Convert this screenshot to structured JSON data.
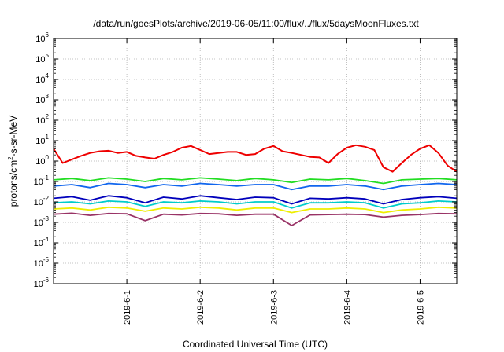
{
  "chart_data": {
    "type": "line",
    "title": "/data/run/goesPlots/archive/2019-06-05/11:00/flux/../flux/5daysMoonFluxes.txt",
    "xlabel": "Coordinated Universal Time (UTC)",
    "ylabel": {
      "base": "protons/cm",
      "sup": "2",
      "rest": "-s-sr-MeV"
    },
    "scale": {
      "y": "log"
    },
    "ylim": [
      1e-06,
      1000000.0
    ],
    "y_ticks": [
      {
        "value": 1e-06,
        "base": "10",
        "exp": "-6"
      },
      {
        "value": 1e-05,
        "base": "10",
        "exp": "-5"
      },
      {
        "value": 0.0001,
        "base": "10",
        "exp": "-4"
      },
      {
        "value": 0.001,
        "base": "10",
        "exp": "-3"
      },
      {
        "value": 0.01,
        "base": "10",
        "exp": "-2"
      },
      {
        "value": 0.1,
        "base": "10",
        "exp": "-1"
      },
      {
        "value": 1,
        "base": "10",
        "exp": "0"
      },
      {
        "value": 10,
        "base": "10",
        "exp": "1"
      },
      {
        "value": 100,
        "base": "10",
        "exp": "2"
      },
      {
        "value": 1000,
        "base": "10",
        "exp": "3"
      },
      {
        "value": 10000,
        "base": "10",
        "exp": "4"
      },
      {
        "value": 100000,
        "base": "10",
        "exp": "5"
      },
      {
        "value": 1000000,
        "base": "10",
        "exp": "6"
      }
    ],
    "xlim": [
      "2019-05-31 00:00",
      "2019-06-05 12:00"
    ],
    "x_ticks": [
      {
        "value": "2019-06-01 00:00",
        "label": "2019-6-1"
      },
      {
        "value": "2019-06-02 00:00",
        "label": "2019-6-2"
      },
      {
        "value": "2019-06-03 00:00",
        "label": "2019-6-3"
      },
      {
        "value": "2019-06-04 00:00",
        "label": "2019-6-4"
      },
      {
        "value": "2019-06-05 00:00",
        "label": "2019-6-5"
      }
    ],
    "grid": true,
    "legend": "none",
    "series": [
      {
        "color": "#ee0000",
        "x": [
          "2019-05-31 00:00",
          "2019-05-31 03:00",
          "2019-05-31 06:00",
          "2019-05-31 09:00",
          "2019-05-31 12:00",
          "2019-05-31 15:00",
          "2019-05-31 18:00",
          "2019-05-31 21:00",
          "2019-06-01 00:00",
          "2019-06-01 03:00",
          "2019-06-01 06:00",
          "2019-06-01 09:00",
          "2019-06-01 12:00",
          "2019-06-01 15:00",
          "2019-06-01 18:00",
          "2019-06-01 21:00",
          "2019-06-02 00:00",
          "2019-06-02 03:00",
          "2019-06-02 06:00",
          "2019-06-02 09:00",
          "2019-06-02 12:00",
          "2019-06-02 15:00",
          "2019-06-02 18:00",
          "2019-06-02 21:00",
          "2019-06-03 00:00",
          "2019-06-03 03:00",
          "2019-06-03 06:00",
          "2019-06-03 09:00",
          "2019-06-03 12:00",
          "2019-06-03 15:00",
          "2019-06-03 18:00",
          "2019-06-03 21:00",
          "2019-06-04 00:00",
          "2019-06-04 03:00",
          "2019-06-04 06:00",
          "2019-06-04 09:00",
          "2019-06-04 12:00",
          "2019-06-04 15:00",
          "2019-06-04 18:00",
          "2019-06-04 21:00",
          "2019-06-05 00:00",
          "2019-06-05 03:00",
          "2019-06-05 06:00",
          "2019-06-05 09:00",
          "2019-06-05 12:00"
        ],
        "y": [
          4,
          0.8,
          1.2,
          1.8,
          2.5,
          3,
          3.2,
          2.5,
          2.8,
          1.8,
          1.5,
          1.3,
          2,
          2.8,
          4.5,
          5.5,
          3.5,
          2.2,
          2.5,
          2.8,
          2.8,
          2,
          2.2,
          4,
          5.5,
          3,
          2.5,
          2,
          1.6,
          1.5,
          0.8,
          2.2,
          4.5,
          6,
          5,
          3.5,
          0.5,
          0.3,
          0.8,
          2,
          4,
          6,
          2.5,
          0.6,
          0.3
        ]
      },
      {
        "color": "#22dd22",
        "x": [
          "2019-05-31 00:00",
          "2019-05-31 06:00",
          "2019-05-31 12:00",
          "2019-05-31 18:00",
          "2019-06-01 00:00",
          "2019-06-01 06:00",
          "2019-06-01 12:00",
          "2019-06-01 18:00",
          "2019-06-02 00:00",
          "2019-06-02 06:00",
          "2019-06-02 12:00",
          "2019-06-02 18:00",
          "2019-06-03 00:00",
          "2019-06-03 06:00",
          "2019-06-03 12:00",
          "2019-06-03 18:00",
          "2019-06-04 00:00",
          "2019-06-04 06:00",
          "2019-06-04 12:00",
          "2019-06-04 18:00",
          "2019-06-05 00:00",
          "2019-06-05 06:00",
          "2019-06-05 12:00"
        ],
        "y": [
          0.12,
          0.14,
          0.11,
          0.15,
          0.13,
          0.1,
          0.14,
          0.12,
          0.15,
          0.13,
          0.11,
          0.14,
          0.12,
          0.09,
          0.13,
          0.12,
          0.14,
          0.11,
          0.08,
          0.12,
          0.13,
          0.14,
          0.12
        ]
      },
      {
        "color": "#1166ee",
        "x": [
          "2019-05-31 00:00",
          "2019-05-31 06:00",
          "2019-05-31 12:00",
          "2019-05-31 18:00",
          "2019-06-01 00:00",
          "2019-06-01 06:00",
          "2019-06-01 12:00",
          "2019-06-01 18:00",
          "2019-06-02 00:00",
          "2019-06-02 06:00",
          "2019-06-02 12:00",
          "2019-06-02 18:00",
          "2019-06-03 00:00",
          "2019-06-03 06:00",
          "2019-06-03 12:00",
          "2019-06-03 18:00",
          "2019-06-04 00:00",
          "2019-06-04 06:00",
          "2019-06-04 12:00",
          "2019-06-04 18:00",
          "2019-06-05 00:00",
          "2019-06-05 06:00",
          "2019-06-05 12:00"
        ],
        "y": [
          0.06,
          0.07,
          0.05,
          0.08,
          0.07,
          0.05,
          0.07,
          0.06,
          0.08,
          0.07,
          0.06,
          0.07,
          0.07,
          0.04,
          0.06,
          0.06,
          0.07,
          0.06,
          0.04,
          0.06,
          0.07,
          0.08,
          0.07
        ]
      },
      {
        "color": "#0000bb",
        "x": [
          "2019-05-31 00:00",
          "2019-05-31 06:00",
          "2019-05-31 12:00",
          "2019-05-31 18:00",
          "2019-06-01 00:00",
          "2019-06-01 06:00",
          "2019-06-01 12:00",
          "2019-06-01 18:00",
          "2019-06-02 00:00",
          "2019-06-02 06:00",
          "2019-06-02 12:00",
          "2019-06-02 18:00",
          "2019-06-03 00:00",
          "2019-06-03 06:00",
          "2019-06-03 12:00",
          "2019-06-03 18:00",
          "2019-06-04 00:00",
          "2019-06-04 06:00",
          "2019-06-04 12:00",
          "2019-06-04 18:00",
          "2019-06-05 00:00",
          "2019-06-05 06:00",
          "2019-06-05 12:00"
        ],
        "y": [
          0.015,
          0.018,
          0.012,
          0.02,
          0.016,
          0.009,
          0.017,
          0.014,
          0.02,
          0.016,
          0.013,
          0.017,
          0.016,
          0.008,
          0.015,
          0.014,
          0.016,
          0.014,
          0.008,
          0.013,
          0.016,
          0.018,
          0.015
        ]
      },
      {
        "color": "#00cccc",
        "x": [
          "2019-05-31 00:00",
          "2019-05-31 06:00",
          "2019-05-31 12:00",
          "2019-05-31 18:00",
          "2019-06-01 00:00",
          "2019-06-01 06:00",
          "2019-06-01 12:00",
          "2019-06-01 18:00",
          "2019-06-02 00:00",
          "2019-06-02 06:00",
          "2019-06-02 12:00",
          "2019-06-02 18:00",
          "2019-06-03 00:00",
          "2019-06-03 06:00",
          "2019-06-03 12:00",
          "2019-06-03 18:00",
          "2019-06-04 00:00",
          "2019-06-04 06:00",
          "2019-06-04 12:00",
          "2019-06-04 18:00",
          "2019-06-05 00:00",
          "2019-06-05 06:00",
          "2019-06-05 12:00"
        ],
        "y": [
          0.009,
          0.01,
          0.008,
          0.011,
          0.01,
          0.006,
          0.01,
          0.009,
          0.011,
          0.01,
          0.008,
          0.01,
          0.01,
          0.005,
          0.009,
          0.009,
          0.01,
          0.009,
          0.005,
          0.008,
          0.009,
          0.011,
          0.01
        ]
      },
      {
        "color": "#eeee00",
        "x": [
          "2019-05-31 00:00",
          "2019-05-31 06:00",
          "2019-05-31 12:00",
          "2019-05-31 18:00",
          "2019-06-01 00:00",
          "2019-06-01 06:00",
          "2019-06-01 12:00",
          "2019-06-01 18:00",
          "2019-06-02 00:00",
          "2019-06-02 06:00",
          "2019-06-02 12:00",
          "2019-06-02 18:00",
          "2019-06-03 00:00",
          "2019-06-03 06:00",
          "2019-06-03 12:00",
          "2019-06-03 18:00",
          "2019-06-04 00:00",
          "2019-06-04 06:00",
          "2019-06-04 12:00",
          "2019-06-04 18:00",
          "2019-06-05 00:00",
          "2019-06-05 06:00",
          "2019-06-05 12:00"
        ],
        "y": [
          0.0045,
          0.005,
          0.004,
          0.0055,
          0.005,
          0.0035,
          0.005,
          0.0045,
          0.0055,
          0.005,
          0.004,
          0.005,
          0.005,
          0.003,
          0.0045,
          0.0045,
          0.005,
          0.0045,
          0.003,
          0.004,
          0.0045,
          0.0055,
          0.005
        ]
      },
      {
        "color": "#993366",
        "x": [
          "2019-05-31 00:00",
          "2019-05-31 06:00",
          "2019-05-31 12:00",
          "2019-05-31 18:00",
          "2019-06-01 00:00",
          "2019-06-01 06:00",
          "2019-06-01 12:00",
          "2019-06-01 18:00",
          "2019-06-02 00:00",
          "2019-06-02 06:00",
          "2019-06-02 12:00",
          "2019-06-02 18:00",
          "2019-06-03 00:00",
          "2019-06-03 06:00",
          "2019-06-03 12:00",
          "2019-06-03 18:00",
          "2019-06-04 00:00",
          "2019-06-04 06:00",
          "2019-06-04 12:00",
          "2019-06-04 18:00",
          "2019-06-05 00:00",
          "2019-06-05 06:00",
          "2019-06-05 12:00"
        ],
        "y": [
          0.0025,
          0.0028,
          0.0022,
          0.0027,
          0.0026,
          0.0012,
          0.0025,
          0.0023,
          0.0027,
          0.0026,
          0.0022,
          0.0025,
          0.0025,
          0.0007,
          0.0023,
          0.0024,
          0.0025,
          0.0024,
          0.0018,
          0.0022,
          0.0024,
          0.0027,
          0.0026
        ]
      }
    ]
  }
}
